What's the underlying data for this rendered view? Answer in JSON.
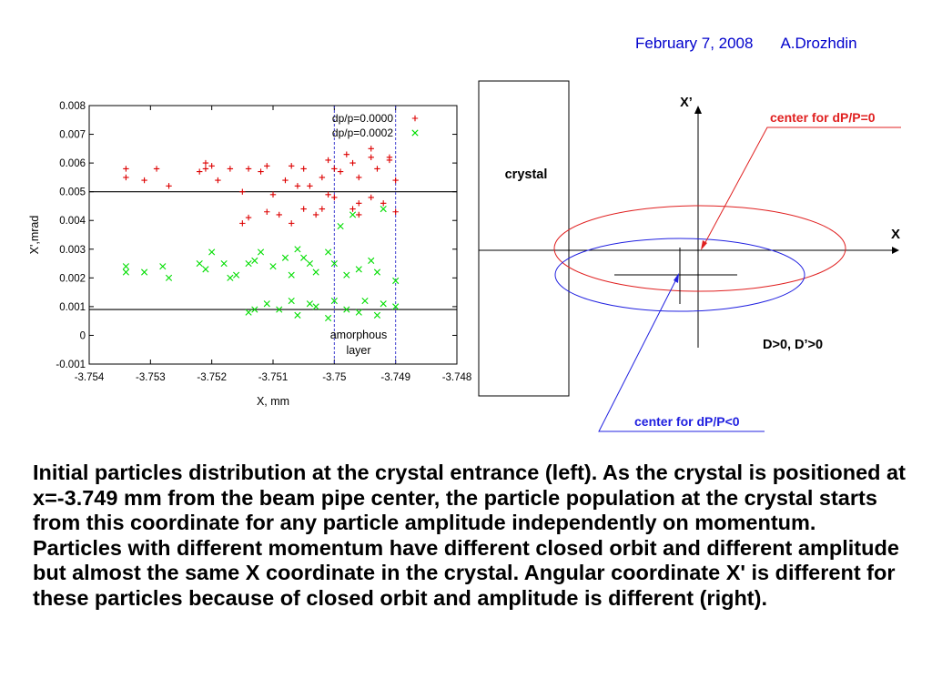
{
  "header": {
    "date": "February 7, 2008",
    "author": "A.Drozhdin"
  },
  "chart_data": {
    "type": "scatter",
    "title": "",
    "xlabel": "X, mm",
    "ylabel": "X',mrad",
    "xlim": [
      -3.754,
      -3.748
    ],
    "ylim": [
      -0.001,
      0.008
    ],
    "xticks": [
      "-3.754",
      "-3.753",
      "-3.752",
      "-3.751",
      "-3.75",
      "-3.749",
      "-3.748"
    ],
    "yticks": [
      "-0.001",
      "0",
      "0.001",
      "0.002",
      "0.003",
      "0.004",
      "0.005",
      "0.006",
      "0.007",
      "0.008"
    ],
    "hlines": [
      0.005,
      0.0009
    ],
    "vlines": [
      -3.75,
      -3.749
    ],
    "annotation": "amorphous layer",
    "legend_position": "top-right",
    "series": [
      {
        "name": "dp/p=0.0000",
        "color": "#dd0000",
        "marker": "+",
        "x": [
          -3.7534,
          -3.7534,
          -3.7531,
          -3.7529,
          -3.7527,
          -3.7522,
          -3.7521,
          -3.752,
          -3.7519,
          -3.7517,
          -3.7515,
          -3.7514,
          -3.7512,
          -3.7511,
          -3.7508,
          -3.7507,
          -3.7506,
          -3.7505,
          -3.7504,
          -3.7502,
          -3.7501,
          -3.75,
          -3.7499,
          -3.7497,
          -3.7496,
          -3.7494,
          -3.7493,
          -3.7491,
          -3.749,
          -3.7515,
          -3.7514,
          -3.7511,
          -3.7509,
          -3.7507,
          -3.7505,
          -3.7503,
          -3.7502,
          -3.75,
          -3.7497,
          -3.7496,
          -3.7494,
          -3.7492,
          -3.749,
          -3.7521,
          -3.751,
          -3.7501,
          -3.7498,
          -3.7494,
          -3.7491,
          -3.7496
        ],
        "y": [
          0.0055,
          0.0058,
          0.0054,
          0.0058,
          0.0052,
          0.0057,
          0.0058,
          0.0059,
          0.0054,
          0.0058,
          0.005,
          0.0058,
          0.0057,
          0.0059,
          0.0054,
          0.0059,
          0.0052,
          0.0058,
          0.0052,
          0.0055,
          0.0061,
          0.0058,
          0.0057,
          0.006,
          0.0055,
          0.0062,
          0.0058,
          0.0061,
          0.0054,
          0.0039,
          0.0041,
          0.0043,
          0.0042,
          0.0039,
          0.0044,
          0.0042,
          0.0044,
          0.0048,
          0.0044,
          0.0042,
          0.0048,
          0.0046,
          0.0043,
          0.006,
          0.0049,
          0.0049,
          0.0063,
          0.0065,
          0.0062,
          0.0046
        ]
      },
      {
        "name": "dp/p=0.0002",
        "color": "#00dd00",
        "marker": "x",
        "x": [
          -3.7534,
          -3.7534,
          -3.7531,
          -3.7528,
          -3.7527,
          -3.7522,
          -3.7521,
          -3.752,
          -3.7518,
          -3.7517,
          -3.7514,
          -3.7513,
          -3.7512,
          -3.751,
          -3.7508,
          -3.7507,
          -3.7505,
          -3.7504,
          -3.7503,
          -3.7501,
          -3.75,
          -3.7498,
          -3.7496,
          -3.7494,
          -3.7493,
          -3.749,
          -3.7514,
          -3.7513,
          -3.7511,
          -3.7509,
          -3.7507,
          -3.7506,
          -3.7504,
          -3.7503,
          -3.7501,
          -3.75,
          -3.7498,
          -3.7496,
          -3.7495,
          -3.7493,
          -3.7492,
          -3.749,
          -3.7516,
          -3.7506,
          -3.7499,
          -3.7497,
          -3.7492
        ],
        "y": [
          0.0024,
          0.0022,
          0.0022,
          0.0024,
          0.002,
          0.0025,
          0.0023,
          0.0029,
          0.0025,
          0.002,
          0.0025,
          0.0026,
          0.0029,
          0.0024,
          0.0027,
          0.0021,
          0.0027,
          0.0025,
          0.0022,
          0.0029,
          0.0025,
          0.0021,
          0.0023,
          0.0026,
          0.0022,
          0.0019,
          0.0008,
          0.0009,
          0.0011,
          0.0009,
          0.0012,
          0.0007,
          0.0011,
          0.001,
          0.0006,
          0.0012,
          0.0009,
          0.0008,
          0.0012,
          0.0007,
          0.0011,
          0.001,
          0.0021,
          0.003,
          0.0038,
          0.0042,
          0.0044
        ]
      }
    ]
  },
  "diagram": {
    "crystal_label": "crystal",
    "axis_x_label": "X",
    "axis_xp_label": "X’",
    "condition_label": "D>0,  D’>0",
    "center_dp0_label": "center for dP/P=0",
    "center_dpneg_label": "center for dP/P<0",
    "red_color": "#e02020",
    "blue_color": "#2020e0"
  },
  "caption": "Initial particles distribution at the crystal entrance (left). As the crystal is positioned at x=-3.749 mm from the beam pipe center, the particle population at the crystal starts from this coordinate for any particle amplitude independently on momentum. Particles with different momentum have different closed orbit and different amplitude but almost the same X coordinate in the crystal. Angular coordinate X' is different for these particles because of closed orbit and amplitude is different (right)."
}
